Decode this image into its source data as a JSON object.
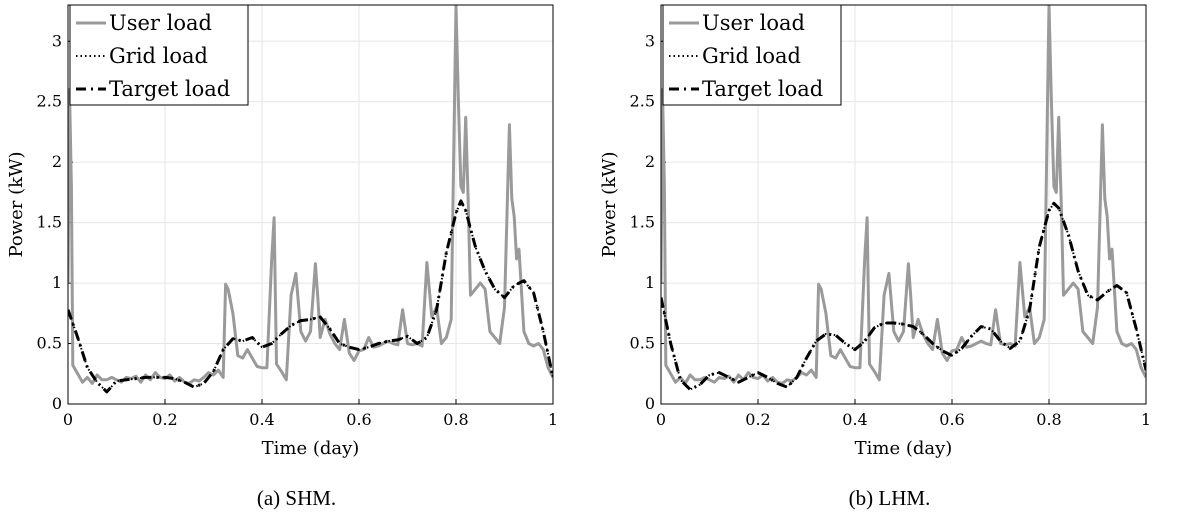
{
  "figure": {
    "xlabel": "Time (day)",
    "ylabel": "Power (kW)",
    "legend": [
      "User load",
      "Grid load",
      "Target load"
    ]
  },
  "colors": {
    "user": "#9a9a9a",
    "grid": "#000000",
    "target": "#000000",
    "grid_lines": "#e6e6e6"
  },
  "chart_data": [
    {
      "type": "line",
      "caption": "(a) SHM.",
      "xlabel": "Time (day)",
      "ylabel": "Power (kW)",
      "xlim": [
        0,
        1
      ],
      "ylim": [
        0,
        3.3
      ],
      "xticks": [
        "0",
        "0.2",
        "0.4",
        "0.6",
        "0.8",
        "1"
      ],
      "yticks": [
        "0",
        "0.5",
        "1",
        "1.5",
        "2",
        "2.5",
        "3"
      ],
      "grid": true,
      "legend_position": "top-left",
      "series": [
        {
          "name": "User load",
          "style": "solid-gray",
          "x": [
            0,
            0.003,
            0.007,
            0.01,
            0.02,
            0.03,
            0.04,
            0.05,
            0.06,
            0.07,
            0.08,
            0.09,
            0.1,
            0.11,
            0.12,
            0.13,
            0.14,
            0.15,
            0.16,
            0.17,
            0.18,
            0.19,
            0.2,
            0.21,
            0.22,
            0.23,
            0.24,
            0.25,
            0.26,
            0.27,
            0.28,
            0.29,
            0.3,
            0.31,
            0.32,
            0.325,
            0.33,
            0.34,
            0.35,
            0.36,
            0.37,
            0.38,
            0.39,
            0.4,
            0.41,
            0.42,
            0.425,
            0.43,
            0.44,
            0.45,
            0.46,
            0.47,
            0.48,
            0.49,
            0.5,
            0.51,
            0.515,
            0.52,
            0.53,
            0.54,
            0.55,
            0.56,
            0.57,
            0.58,
            0.59,
            0.6,
            0.61,
            0.62,
            0.63,
            0.64,
            0.65,
            0.66,
            0.67,
            0.68,
            0.69,
            0.7,
            0.71,
            0.72,
            0.73,
            0.74,
            0.75,
            0.76,
            0.77,
            0.78,
            0.79,
            0.8,
            0.805,
            0.81,
            0.815,
            0.82,
            0.825,
            0.83,
            0.84,
            0.85,
            0.86,
            0.87,
            0.88,
            0.89,
            0.9,
            0.91,
            0.915,
            0.92,
            0.925,
            0.93,
            0.94,
            0.95,
            0.96,
            0.97,
            0.98,
            0.99,
            1.0
          ],
          "y": [
            1.0,
            2.6,
            1.8,
            0.32,
            0.25,
            0.18,
            0.22,
            0.17,
            0.24,
            0.2,
            0.2,
            0.22,
            0.2,
            0.18,
            0.22,
            0.21,
            0.23,
            0.18,
            0.24,
            0.2,
            0.26,
            0.22,
            0.21,
            0.24,
            0.19,
            0.22,
            0.18,
            0.17,
            0.2,
            0.19,
            0.22,
            0.26,
            0.24,
            0.28,
            0.22,
            0.99,
            0.95,
            0.75,
            0.4,
            0.38,
            0.45,
            0.38,
            0.31,
            0.3,
            0.3,
            1.2,
            1.54,
            0.33,
            0.27,
            0.2,
            0.9,
            1.08,
            0.6,
            0.52,
            0.6,
            1.16,
            0.88,
            0.55,
            0.7,
            0.58,
            0.5,
            0.45,
            0.7,
            0.42,
            0.36,
            0.44,
            0.45,
            0.55,
            0.47,
            0.48,
            0.5,
            0.52,
            0.5,
            0.49,
            0.78,
            0.5,
            0.49,
            0.5,
            0.48,
            1.17,
            0.72,
            0.8,
            0.5,
            0.55,
            0.7,
            3.3,
            2.5,
            1.8,
            1.75,
            2.37,
            1.7,
            0.9,
            0.95,
            1.0,
            0.95,
            0.6,
            0.55,
            0.5,
            0.8,
            2.31,
            1.7,
            1.55,
            1.2,
            1.28,
            0.6,
            0.5,
            0.48,
            0.5,
            0.45,
            0.3,
            0.22
          ]
        },
        {
          "name": "Grid load",
          "style": "dotted-black",
          "x": [
            0,
            0.02,
            0.04,
            0.06,
            0.08,
            0.1,
            0.12,
            0.14,
            0.16,
            0.18,
            0.2,
            0.22,
            0.24,
            0.26,
            0.28,
            0.3,
            0.32,
            0.34,
            0.36,
            0.38,
            0.4,
            0.42,
            0.44,
            0.46,
            0.48,
            0.5,
            0.52,
            0.54,
            0.56,
            0.58,
            0.6,
            0.62,
            0.64,
            0.66,
            0.68,
            0.7,
            0.72,
            0.74,
            0.76,
            0.78,
            0.8,
            0.81,
            0.82,
            0.84,
            0.86,
            0.88,
            0.9,
            0.92,
            0.94,
            0.96,
            0.98,
            1.0
          ],
          "y": [
            0.78,
            0.55,
            0.3,
            0.18,
            0.1,
            0.19,
            0.2,
            0.21,
            0.22,
            0.22,
            0.22,
            0.21,
            0.18,
            0.14,
            0.17,
            0.27,
            0.45,
            0.54,
            0.52,
            0.55,
            0.47,
            0.5,
            0.58,
            0.65,
            0.69,
            0.7,
            0.72,
            0.62,
            0.5,
            0.47,
            0.45,
            0.47,
            0.5,
            0.52,
            0.53,
            0.56,
            0.5,
            0.55,
            0.78,
            1.25,
            1.58,
            1.68,
            1.6,
            1.3,
            1.1,
            0.95,
            0.88,
            0.98,
            1.02,
            0.92,
            0.6,
            0.22
          ]
        },
        {
          "name": "Target load",
          "style": "dash-dot-black",
          "x": [
            0,
            0.02,
            0.04,
            0.06,
            0.08,
            0.1,
            0.12,
            0.14,
            0.16,
            0.18,
            0.2,
            0.22,
            0.24,
            0.26,
            0.28,
            0.3,
            0.32,
            0.34,
            0.36,
            0.38,
            0.4,
            0.42,
            0.44,
            0.46,
            0.48,
            0.5,
            0.52,
            0.54,
            0.56,
            0.58,
            0.6,
            0.62,
            0.64,
            0.66,
            0.68,
            0.7,
            0.72,
            0.74,
            0.76,
            0.78,
            0.8,
            0.81,
            0.82,
            0.84,
            0.86,
            0.88,
            0.9,
            0.92,
            0.94,
            0.96,
            0.98,
            1.0
          ],
          "y": [
            0.78,
            0.55,
            0.3,
            0.18,
            0.1,
            0.19,
            0.2,
            0.21,
            0.22,
            0.22,
            0.22,
            0.21,
            0.18,
            0.14,
            0.17,
            0.27,
            0.45,
            0.54,
            0.52,
            0.55,
            0.47,
            0.5,
            0.58,
            0.65,
            0.69,
            0.7,
            0.72,
            0.62,
            0.5,
            0.47,
            0.45,
            0.47,
            0.5,
            0.52,
            0.53,
            0.56,
            0.5,
            0.55,
            0.78,
            1.25,
            1.58,
            1.68,
            1.6,
            1.3,
            1.1,
            0.95,
            0.88,
            0.98,
            1.02,
            0.92,
            0.6,
            0.22
          ]
        }
      ]
    },
    {
      "type": "line",
      "caption": "(b) LHM.",
      "xlabel": "Time (day)",
      "ylabel": "Power (kW)",
      "xlim": [
        0,
        1
      ],
      "ylim": [
        0,
        3.3
      ],
      "xticks": [
        "0",
        "0.2",
        "0.4",
        "0.6",
        "0.8",
        "1"
      ],
      "yticks": [
        "0",
        "0.5",
        "1",
        "1.5",
        "2",
        "2.5",
        "3"
      ],
      "grid": true,
      "legend_position": "top-left",
      "series": [
        {
          "name": "User load",
          "style": "solid-gray",
          "x": [
            0,
            0.003,
            0.007,
            0.01,
            0.02,
            0.03,
            0.04,
            0.05,
            0.06,
            0.07,
            0.08,
            0.09,
            0.1,
            0.11,
            0.12,
            0.13,
            0.14,
            0.15,
            0.16,
            0.17,
            0.18,
            0.19,
            0.2,
            0.21,
            0.22,
            0.23,
            0.24,
            0.25,
            0.26,
            0.27,
            0.28,
            0.29,
            0.3,
            0.31,
            0.32,
            0.325,
            0.33,
            0.34,
            0.35,
            0.36,
            0.37,
            0.38,
            0.39,
            0.4,
            0.41,
            0.42,
            0.425,
            0.43,
            0.44,
            0.45,
            0.46,
            0.47,
            0.48,
            0.49,
            0.5,
            0.51,
            0.515,
            0.52,
            0.53,
            0.54,
            0.55,
            0.56,
            0.57,
            0.58,
            0.59,
            0.6,
            0.61,
            0.62,
            0.63,
            0.64,
            0.65,
            0.66,
            0.67,
            0.68,
            0.69,
            0.7,
            0.71,
            0.72,
            0.73,
            0.74,
            0.75,
            0.76,
            0.77,
            0.78,
            0.79,
            0.8,
            0.805,
            0.81,
            0.815,
            0.82,
            0.825,
            0.83,
            0.84,
            0.85,
            0.86,
            0.87,
            0.88,
            0.89,
            0.9,
            0.91,
            0.915,
            0.92,
            0.925,
            0.93,
            0.94,
            0.95,
            0.96,
            0.97,
            0.98,
            0.99,
            1.0
          ],
          "y": [
            1.0,
            2.6,
            1.8,
            0.32,
            0.25,
            0.18,
            0.22,
            0.17,
            0.24,
            0.2,
            0.2,
            0.22,
            0.2,
            0.18,
            0.22,
            0.21,
            0.23,
            0.18,
            0.24,
            0.2,
            0.26,
            0.22,
            0.21,
            0.24,
            0.19,
            0.22,
            0.18,
            0.17,
            0.2,
            0.19,
            0.22,
            0.26,
            0.24,
            0.28,
            0.22,
            0.99,
            0.95,
            0.75,
            0.4,
            0.38,
            0.45,
            0.38,
            0.31,
            0.3,
            0.3,
            1.2,
            1.54,
            0.33,
            0.27,
            0.2,
            0.9,
            1.08,
            0.6,
            0.52,
            0.6,
            1.16,
            0.88,
            0.55,
            0.7,
            0.58,
            0.5,
            0.45,
            0.7,
            0.42,
            0.36,
            0.44,
            0.45,
            0.55,
            0.47,
            0.48,
            0.5,
            0.52,
            0.5,
            0.49,
            0.78,
            0.5,
            0.49,
            0.5,
            0.48,
            1.17,
            0.72,
            0.8,
            0.5,
            0.55,
            0.7,
            3.3,
            2.5,
            1.8,
            1.75,
            2.37,
            1.7,
            0.9,
            0.95,
            1.0,
            0.95,
            0.6,
            0.55,
            0.5,
            0.8,
            2.31,
            1.7,
            1.55,
            1.2,
            1.28,
            0.6,
            0.5,
            0.48,
            0.5,
            0.45,
            0.3,
            0.22
          ]
        },
        {
          "name": "Grid load",
          "style": "dotted-black",
          "x": [
            0,
            0.02,
            0.04,
            0.06,
            0.08,
            0.1,
            0.12,
            0.14,
            0.16,
            0.18,
            0.2,
            0.22,
            0.24,
            0.26,
            0.28,
            0.3,
            0.32,
            0.34,
            0.36,
            0.38,
            0.4,
            0.42,
            0.44,
            0.46,
            0.48,
            0.5,
            0.52,
            0.54,
            0.56,
            0.58,
            0.6,
            0.62,
            0.64,
            0.66,
            0.68,
            0.7,
            0.72,
            0.74,
            0.76,
            0.78,
            0.8,
            0.81,
            0.82,
            0.84,
            0.86,
            0.88,
            0.9,
            0.92,
            0.94,
            0.96,
            0.98,
            1.0
          ],
          "y": [
            0.88,
            0.5,
            0.2,
            0.12,
            0.16,
            0.24,
            0.26,
            0.22,
            0.18,
            0.22,
            0.26,
            0.22,
            0.17,
            0.14,
            0.22,
            0.38,
            0.52,
            0.58,
            0.57,
            0.5,
            0.45,
            0.52,
            0.63,
            0.67,
            0.67,
            0.66,
            0.64,
            0.58,
            0.5,
            0.44,
            0.4,
            0.46,
            0.56,
            0.64,
            0.62,
            0.52,
            0.46,
            0.52,
            0.78,
            1.3,
            1.6,
            1.66,
            1.62,
            1.4,
            1.1,
            0.9,
            0.86,
            0.93,
            0.98,
            0.92,
            0.62,
            0.28
          ]
        },
        {
          "name": "Target load",
          "style": "dash-dot-black",
          "x": [
            0,
            0.02,
            0.04,
            0.06,
            0.08,
            0.1,
            0.12,
            0.14,
            0.16,
            0.18,
            0.2,
            0.22,
            0.24,
            0.26,
            0.28,
            0.3,
            0.32,
            0.34,
            0.36,
            0.38,
            0.4,
            0.42,
            0.44,
            0.46,
            0.48,
            0.5,
            0.52,
            0.54,
            0.56,
            0.58,
            0.6,
            0.62,
            0.64,
            0.66,
            0.68,
            0.7,
            0.72,
            0.74,
            0.76,
            0.78,
            0.8,
            0.81,
            0.82,
            0.84,
            0.86,
            0.88,
            0.9,
            0.92,
            0.94,
            0.96,
            0.98,
            1.0
          ],
          "y": [
            0.88,
            0.5,
            0.2,
            0.12,
            0.16,
            0.24,
            0.26,
            0.22,
            0.18,
            0.22,
            0.26,
            0.22,
            0.17,
            0.14,
            0.22,
            0.38,
            0.52,
            0.58,
            0.57,
            0.5,
            0.45,
            0.52,
            0.63,
            0.67,
            0.67,
            0.66,
            0.64,
            0.58,
            0.5,
            0.44,
            0.4,
            0.46,
            0.56,
            0.64,
            0.62,
            0.52,
            0.46,
            0.52,
            0.78,
            1.3,
            1.6,
            1.66,
            1.62,
            1.4,
            1.1,
            0.9,
            0.86,
            0.93,
            0.98,
            0.92,
            0.62,
            0.28
          ]
        }
      ]
    }
  ]
}
